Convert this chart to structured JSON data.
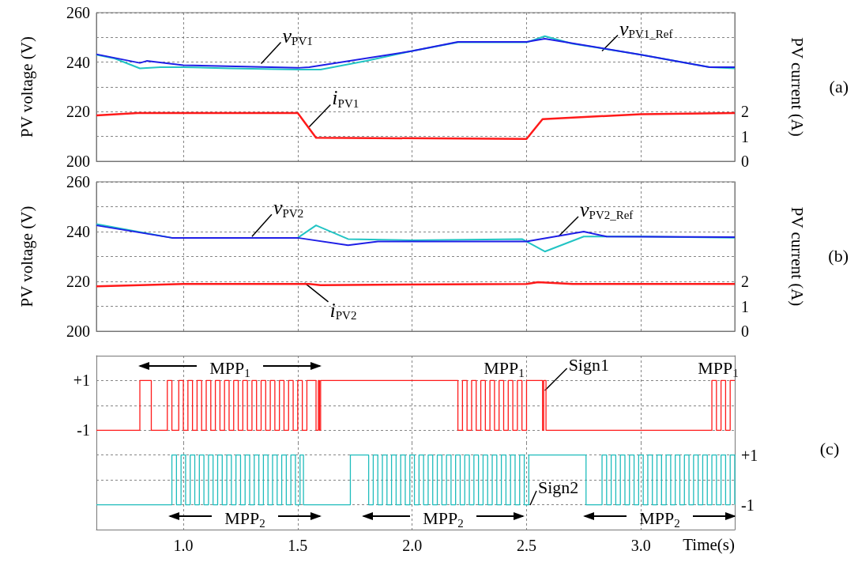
{
  "chart_data": [
    {
      "type": "line",
      "ylabel": "PV voltage (V)",
      "y2label": "PV current (A)",
      "xlim": [
        0.62,
        3.41
      ],
      "xticks": [
        1,
        1.5,
        2,
        2.5,
        3
      ],
      "ylim": [
        200,
        260
      ],
      "yticks": [
        200,
        {
          "value": 210,
          "label": null
        },
        220,
        {
          "value": 230,
          "label": null
        },
        240,
        {
          "value": 250,
          "label": null
        },
        260
      ],
      "y2lim": [
        0,
        6
      ],
      "y2ticks": [
        0,
        1,
        2
      ],
      "tick_labels": "y",
      "grid": true,
      "series": [
        {
          "color": "#22c4c4",
          "x": [
            0.62,
            0.7,
            0.81,
            0.9,
            1.0,
            1.2,
            1.5,
            1.6,
            1.8,
            2.0,
            2.2,
            2.5,
            2.58,
            2.7,
            3.0,
            3.3,
            3.41
          ],
          "values": [
            243,
            241.5,
            237.5,
            238,
            238,
            237.5,
            237,
            237,
            240.5,
            244.5,
            248,
            248,
            250.5,
            247.5,
            243,
            238,
            237.5
          ]
        },
        {
          "color": "#1f1fe6",
          "x": [
            0.62,
            0.81,
            0.84,
            1.0,
            1.5,
            1.55,
            2.0,
            2.2,
            2.5,
            2.58,
            3.0,
            3.3,
            3.41
          ],
          "values": [
            243.2,
            239.7,
            240.5,
            238.8,
            237.7,
            238,
            244.5,
            248.2,
            248.2,
            249.5,
            243,
            238,
            238
          ]
        },
        {
          "color": "#ff1a1a",
          "axis": "y2",
          "x": [
            0.62,
            0.8,
            1.5,
            1.58,
            2.5,
            2.57,
            3.0,
            3.41
          ],
          "values": [
            1.85,
            1.95,
            1.95,
            0.95,
            0.9,
            1.7,
            1.9,
            1.95
          ]
        }
      ],
      "annotations": [
        "(a)",
        {
          "text": "v$_{PV1}$",
          "x": 1.34,
          "y": 239.4
        },
        {
          "text": "v$_{PV1_Ref}$",
          "x": 2.83,
          "y": 244.5
        },
        {
          "text": "i$_{PV1}$",
          "x": 1.55,
          "y": 213.9
        }
      ]
    },
    {
      "type": "line",
      "ylabel": "PV voltage (V)",
      "y2label": "PV current (A)",
      "xlim": [
        0.62,
        3.41
      ],
      "xticks": [
        1,
        1.5,
        2,
        2.5,
        3
      ],
      "ylim": [
        200,
        260
      ],
      "yticks": [
        200,
        {
          "value": 210,
          "label": null
        },
        220,
        {
          "value": 230,
          "label": null
        },
        240,
        {
          "value": 250,
          "label": null
        },
        260
      ],
      "y2lim": [
        0,
        6
      ],
      "y2ticks": [
        0,
        1,
        2
      ],
      "tick_labels": "y",
      "grid": true,
      "series": [
        {
          "color": "#22c4c4",
          "x": [
            0.62,
            0.95,
            1.5,
            1.58,
            1.72,
            2.0,
            2.48,
            2.58,
            2.75,
            3.0,
            3.41
          ],
          "values": [
            243,
            237.5,
            237.5,
            242.5,
            237,
            236.5,
            237,
            232,
            238,
            238,
            237.5
          ]
        },
        {
          "color": "#1f1fe6",
          "x": [
            0.62,
            0.95,
            1.5,
            1.72,
            1.85,
            2.5,
            2.75,
            2.85,
            3.41
          ],
          "values": [
            242.5,
            237.5,
            237.5,
            234.5,
            236,
            236,
            240,
            238,
            237.8
          ]
        },
        {
          "color": "#ff1a1a",
          "axis": "y2",
          "x": [
            0.62,
            1.0,
            1.55,
            1.6,
            2.5,
            2.55,
            2.7,
            3.41
          ],
          "values": [
            1.8,
            1.9,
            1.9,
            1.85,
            1.9,
            1.97,
            1.9,
            1.9
          ]
        }
      ],
      "annotations": [
        "(b)",
        {
          "text": "v$_{PV2}$",
          "x": 1.3,
          "y": 238
        },
        {
          "text": "v$_{PV2_Ref}$",
          "x": 2.64,
          "y": 238.1
        },
        {
          "text": "i$_{PV2}$",
          "x": 1.53,
          "y": 219.4
        }
      ]
    },
    {
      "type": "step",
      "xlim": [
        0.62,
        3.41
      ],
      "xticks": [
        1,
        1.5,
        2,
        2.5,
        3
      ],
      "ylim": [
        -1.5,
        2
      ],
      "yticks": [
        -1,
        {
          "value": 0,
          "label": null
        },
        {
          "value": 1,
          "label": "+1"
        }
      ],
      "tick_labels": "y",
      "grid": true,
      "series": [
        {
          "color": "#ff1a1a",
          "x": [
            0.62,
            0.81,
            0.86,
            0.93,
            0.95,
            0.98,
            1.0,
            1.02,
            1.04,
            1.06,
            1.08,
            1.1,
            1.12,
            1.14,
            1.16,
            1.18,
            1.2,
            1.22,
            1.24,
            1.26,
            1.28,
            1.3,
            1.32,
            1.34,
            1.36,
            1.38,
            1.4,
            1.42,
            1.44,
            1.46,
            1.48,
            1.5,
            1.52,
            1.54,
            1.58,
            1.59,
            1.595,
            1.6,
            2.2,
            2.22,
            2.24,
            2.26,
            2.28,
            2.3,
            2.32,
            2.34,
            2.36,
            2.38,
            2.4,
            2.42,
            2.44,
            2.46,
            2.48,
            2.5,
            2.57,
            2.575,
            2.585,
            3.31,
            3.33,
            3.35,
            3.37,
            3.39,
            3.41
          ],
          "values": [
            -1,
            1,
            -1,
            1,
            -1,
            1,
            -1,
            1,
            -1,
            1,
            -1,
            1,
            -1,
            1,
            -1,
            1,
            -1,
            1,
            -1,
            1,
            -1,
            1,
            -1,
            1,
            -1,
            1,
            -1,
            1,
            -1,
            1,
            -1,
            1,
            -1,
            1,
            -1,
            1,
            -1,
            1,
            -1,
            1,
            -1,
            1,
            -1,
            1,
            -1,
            1,
            -1,
            1,
            -1,
            1,
            -1,
            1,
            -1,
            1,
            -1,
            1,
            -1,
            1,
            -1,
            1,
            -1,
            1,
            1
          ]
        }
      ],
      "annotations": [
        "MPP$_{1}$",
        "MPP$_{1}$",
        "MPP$_{1}$",
        {
          "text": "Sign1",
          "x": 2.58,
          "y": 0.6
        }
      ]
    },
    {
      "type": "step",
      "xlabel": "Time(s)",
      "xlim": [
        0.62,
        3.41
      ],
      "xticks": [
        {
          "value": 1,
          "label": "1.0"
        },
        {
          "value": 1.5,
          "label": "1.5"
        },
        {
          "value": 2,
          "label": "2.0"
        },
        {
          "value": 2.5,
          "label": "2.5"
        },
        {
          "value": 3,
          "label": "3.0"
        }
      ],
      "y2lim": [
        -2,
        1.5
      ],
      "y2ticks": [
        -1,
        {
          "value": 0,
          "label": null
        },
        {
          "value": 1,
          "label": "+1"
        }
      ],
      "grid": true,
      "series": [
        {
          "color": "#1fbcbc",
          "axis": "y2",
          "x": [
            0.62,
            0.95,
            0.97,
            0.99,
            1.01,
            1.03,
            1.05,
            1.07,
            1.09,
            1.11,
            1.13,
            1.15,
            1.17,
            1.19,
            1.21,
            1.23,
            1.25,
            1.27,
            1.29,
            1.31,
            1.33,
            1.35,
            1.37,
            1.39,
            1.41,
            1.43,
            1.45,
            1.47,
            1.49,
            1.51,
            1.525,
            1.73,
            1.81,
            1.83,
            1.85,
            1.87,
            1.89,
            1.91,
            1.93,
            1.95,
            1.97,
            1.99,
            2.01,
            2.03,
            2.05,
            2.07,
            2.09,
            2.11,
            2.13,
            2.15,
            2.17,
            2.19,
            2.21,
            2.23,
            2.25,
            2.27,
            2.29,
            2.31,
            2.33,
            2.35,
            2.37,
            2.39,
            2.41,
            2.43,
            2.45,
            2.47,
            2.49,
            2.51,
            2.76,
            2.83,
            2.85,
            2.87,
            2.89,
            2.91,
            2.93,
            2.95,
            2.97,
            2.99,
            3.01,
            3.03,
            3.05,
            3.07,
            3.09,
            3.11,
            3.13,
            3.15,
            3.17,
            3.19,
            3.21,
            3.23,
            3.25,
            3.27,
            3.29,
            3.31,
            3.33,
            3.35,
            3.37,
            3.39,
            3.41
          ],
          "values": [
            -1,
            1,
            -1,
            1,
            -1,
            1,
            -1,
            1,
            -1,
            1,
            -1,
            1,
            -1,
            1,
            -1,
            1,
            -1,
            1,
            -1,
            1,
            -1,
            1,
            -1,
            1,
            -1,
            1,
            -1,
            1,
            -1,
            1,
            -1,
            1,
            -1,
            1,
            -1,
            1,
            -1,
            1,
            -1,
            1,
            -1,
            1,
            -1,
            1,
            -1,
            1,
            -1,
            1,
            -1,
            1,
            -1,
            1,
            -1,
            1,
            -1,
            1,
            -1,
            1,
            -1,
            1,
            -1,
            1,
            -1,
            1,
            -1,
            1,
            -1,
            1,
            -1,
            1,
            -1,
            1,
            -1,
            1,
            -1,
            1,
            -1,
            1,
            -1,
            1,
            -1,
            1,
            -1,
            1,
            -1,
            1,
            -1,
            1,
            -1,
            1,
            -1,
            1,
            -1,
            1,
            -1,
            1,
            -1,
            1,
            -1
          ]
        }
      ],
      "annotations": [
        "(c)",
        "Sign2",
        "MPP$_{2}$",
        "MPP$_{2}$",
        "MPP$_{2}$"
      ]
    }
  ]
}
